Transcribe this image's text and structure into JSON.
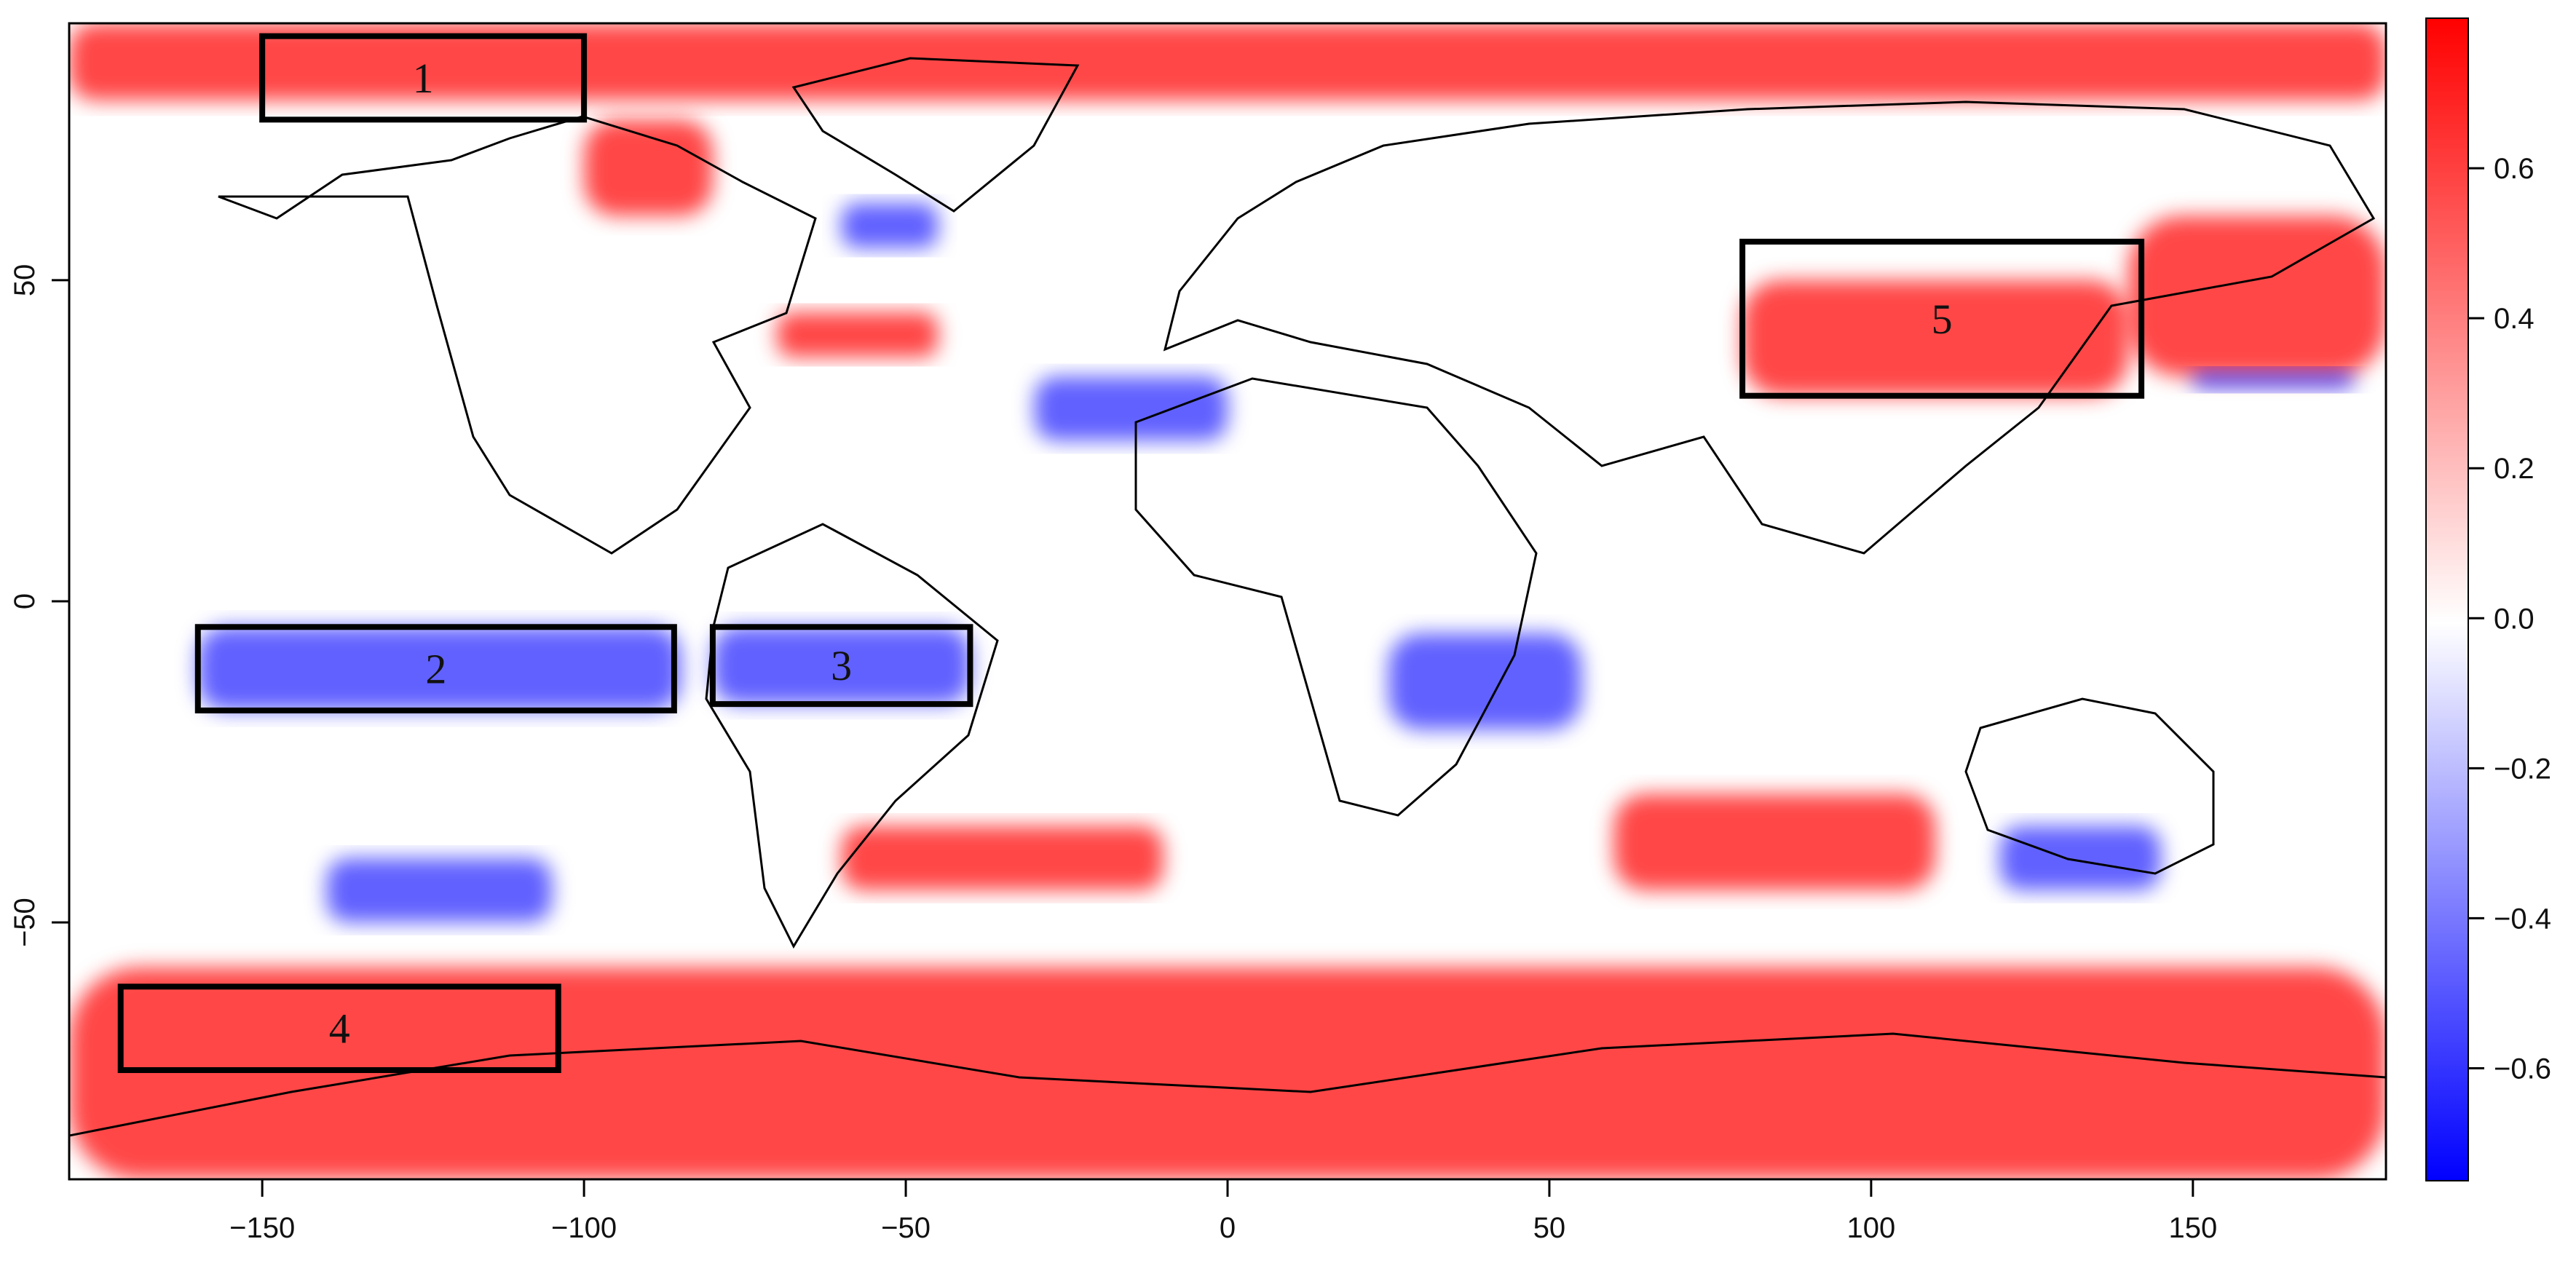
{
  "map": {
    "title": "",
    "x_axis": {
      "min": -180,
      "max": 180,
      "ticks": [
        -150,
        -100,
        -50,
        0,
        50,
        100,
        150
      ]
    },
    "y_axis": {
      "min": -90,
      "max": 90,
      "ticks": [
        50,
        0,
        -50
      ]
    },
    "colorbar": {
      "min": -0.75,
      "max": 0.8,
      "ticks": [
        "0.6",
        "0.4",
        "0.2",
        "0.0",
        "−0.2",
        "−0.4",
        "−0.6"
      ],
      "tick_values": [
        0.6,
        0.4,
        0.2,
        0.0,
        -0.2,
        -0.4,
        -0.6
      ],
      "low_color": "#0000ff",
      "mid_color": "#ffffff",
      "high_color": "#ff0000"
    },
    "regions": [
      {
        "label": "1",
        "lon": [
          -150,
          -100
        ],
        "lat": [
          75,
          88
        ]
      },
      {
        "label": "2",
        "lon": [
          -160,
          -86
        ],
        "lat": [
          -17,
          -4
        ]
      },
      {
        "label": "3",
        "lon": [
          -80,
          -40
        ],
        "lat": [
          -16,
          -4
        ]
      },
      {
        "label": "4",
        "lon": [
          -172,
          -104
        ],
        "lat": [
          -73,
          -60
        ]
      },
      {
        "label": "5",
        "lon": [
          80,
          142
        ],
        "lat": [
          32,
          56
        ]
      }
    ],
    "anomaly_patches": [
      {
        "sign": "positive",
        "lon": [
          -180,
          180
        ],
        "lat": [
          78,
          90
        ]
      },
      {
        "sign": "positive",
        "lon": [
          -180,
          180
        ],
        "lat": [
          -90,
          -57
        ]
      },
      {
        "sign": "positive",
        "lon": [
          80,
          140
        ],
        "lat": [
          32,
          50
        ]
      },
      {
        "sign": "positive",
        "lon": [
          140,
          180
        ],
        "lat": [
          35,
          60
        ]
      },
      {
        "sign": "positive",
        "lon": [
          -100,
          -80
        ],
        "lat": [
          60,
          75
        ]
      },
      {
        "sign": "positive",
        "lon": [
          -70,
          -45
        ],
        "lat": [
          38,
          45
        ]
      },
      {
        "sign": "positive",
        "lon": [
          -60,
          -10
        ],
        "lat": [
          -45,
          -35
        ]
      },
      {
        "sign": "positive",
        "lon": [
          60,
          110
        ],
        "lat": [
          -45,
          -30
        ]
      },
      {
        "sign": "negative",
        "lon": [
          -160,
          -85
        ],
        "lat": [
          -17,
          -4
        ]
      },
      {
        "sign": "negative",
        "lon": [
          -80,
          -40
        ],
        "lat": [
          -16,
          -4
        ]
      },
      {
        "sign": "negative",
        "lon": [
          -60,
          -45
        ],
        "lat": [
          55,
          62
        ]
      },
      {
        "sign": "negative",
        "lon": [
          -30,
          0
        ],
        "lat": [
          25,
          35
        ]
      },
      {
        "sign": "negative",
        "lon": [
          25,
          55
        ],
        "lat": [
          -20,
          -5
        ]
      },
      {
        "sign": "negative",
        "lon": [
          120,
          145
        ],
        "lat": [
          -45,
          -35
        ]
      },
      {
        "sign": "negative",
        "lon": [
          150,
          175
        ],
        "lat": [
          33,
          36
        ]
      },
      {
        "sign": "negative",
        "lon": [
          -140,
          -105
        ],
        "lat": [
          -50,
          -40
        ]
      }
    ]
  }
}
